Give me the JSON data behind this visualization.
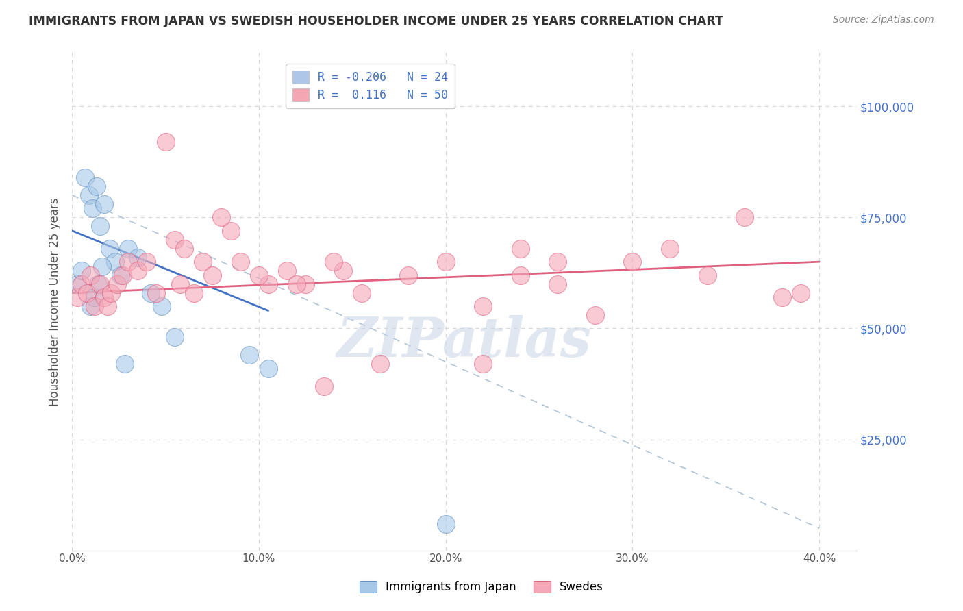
{
  "title": "IMMIGRANTS FROM JAPAN VS SWEDISH HOUSEHOLDER INCOME UNDER 25 YEARS CORRELATION CHART",
  "source": "Source: ZipAtlas.com",
  "ylabel": "Householder Income Under 25 years",
  "xlabel_ticks": [
    "0.0%",
    "10.0%",
    "20.0%",
    "30.0%",
    "40.0%"
  ],
  "xlabel_vals": [
    0.0,
    10.0,
    20.0,
    30.0,
    40.0
  ],
  "ytick_labels": [
    "$25,000",
    "$50,000",
    "$75,000",
    "$100,000"
  ],
  "ytick_vals": [
    25000,
    50000,
    75000,
    100000
  ],
  "ylim": [
    0,
    112000
  ],
  "xlim": [
    0.0,
    42.0
  ],
  "legend_entries": [
    {
      "label": "R = -0.206   N = 24",
      "color": "#aec6e8"
    },
    {
      "label": "R =  0.116   N = 50",
      "color": "#f4a7b3"
    }
  ],
  "japan_scatter_x": [
    0.3,
    0.5,
    0.7,
    0.9,
    1.1,
    1.3,
    1.5,
    1.7,
    2.0,
    2.3,
    2.6,
    3.0,
    3.5,
    4.2,
    4.8,
    5.5,
    1.0,
    1.2,
    1.4,
    1.6,
    2.8,
    9.5,
    10.5,
    20.0
  ],
  "japan_scatter_y": [
    60000,
    63000,
    84000,
    80000,
    77000,
    82000,
    73000,
    78000,
    68000,
    65000,
    62000,
    68000,
    66000,
    58000,
    55000,
    48000,
    55000,
    57000,
    60000,
    64000,
    42000,
    44000,
    41000,
    6000
  ],
  "swede_scatter_x": [
    0.3,
    0.5,
    0.8,
    1.0,
    1.2,
    1.5,
    1.7,
    1.9,
    2.1,
    2.4,
    2.7,
    3.0,
    3.5,
    4.0,
    4.5,
    5.0,
    5.5,
    6.0,
    7.0,
    7.5,
    8.5,
    9.0,
    10.5,
    11.5,
    12.5,
    13.5,
    14.5,
    15.5,
    16.5,
    18.0,
    20.0,
    22.0,
    24.0,
    26.0,
    28.0,
    30.0,
    32.0,
    34.0,
    36.0,
    38.0,
    5.8,
    6.5,
    8.0,
    10.0,
    12.0,
    14.0,
    22.0,
    24.0,
    26.0,
    39.0
  ],
  "swede_scatter_y": [
    57000,
    60000,
    58000,
    62000,
    55000,
    60000,
    57000,
    55000,
    58000,
    60000,
    62000,
    65000,
    63000,
    65000,
    58000,
    92000,
    70000,
    68000,
    65000,
    62000,
    72000,
    65000,
    60000,
    63000,
    60000,
    37000,
    63000,
    58000,
    42000,
    62000,
    65000,
    55000,
    62000,
    65000,
    53000,
    65000,
    68000,
    62000,
    75000,
    57000,
    60000,
    58000,
    75000,
    62000,
    60000,
    65000,
    42000,
    68000,
    60000,
    58000
  ],
  "japan_line_x": [
    0.0,
    10.5
  ],
  "japan_line_y": [
    72000,
    54000
  ],
  "swede_line_x": [
    0.0,
    40.0
  ],
  "swede_line_y": [
    58000,
    65000
  ],
  "diag_line_x": [
    0.0,
    40.0
  ],
  "diag_line_y": [
    80000,
    5000
  ],
  "japan_color": "#a8c8e8",
  "swede_color": "#f4a8b8",
  "japan_edge_color": "#6090c0",
  "swede_edge_color": "#e06080",
  "japan_line_color": "#4472c4",
  "swede_line_color": "#e06080",
  "diag_line_color": "#b0c4d8",
  "bg_color": "#ffffff",
  "grid_color": "#d8d8d8",
  "title_color": "#333333",
  "ytick_right_color": "#4472c4",
  "legend_r_color": "#4472c4",
  "watermark": "ZIPatlas",
  "watermark_color": "#ccd8e8"
}
